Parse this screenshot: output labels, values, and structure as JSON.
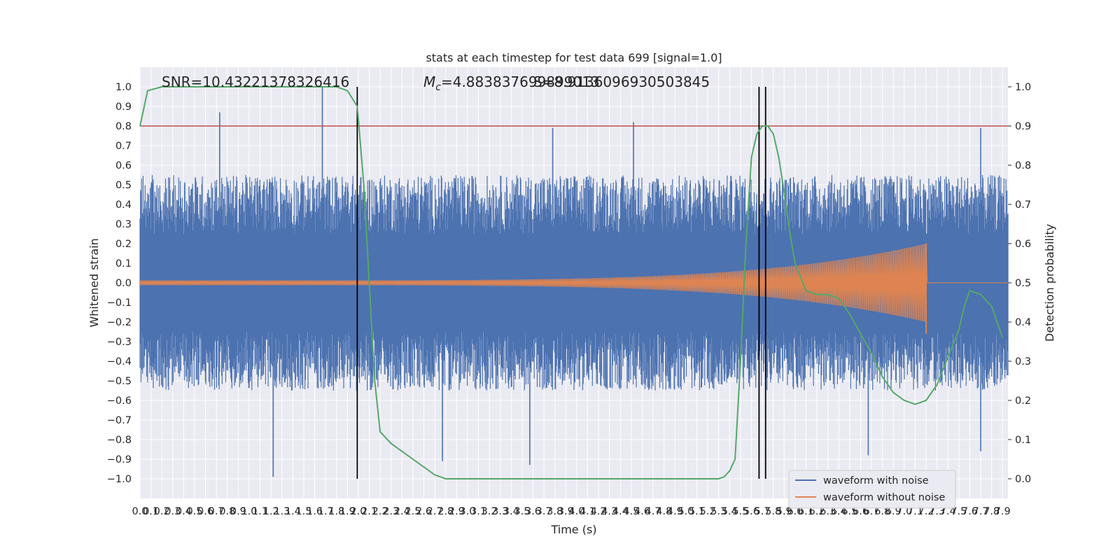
{
  "chart_data": {
    "type": "line",
    "title": "stats at each timestep for test data 699 [signal=1.0]",
    "xlabel": "Time (s)",
    "ylabel": "Whitened strain",
    "y2label": "Detection probability",
    "xlim": [
      0.0,
      7.95
    ],
    "ylim": [
      -1.1,
      1.1
    ],
    "y2lim": [
      -0.05,
      1.05
    ],
    "grid": true,
    "legend_position": "bottom-right",
    "x_tick_labels": [
      "0.0",
      "0.1",
      "0.2",
      "0.3",
      "0.4",
      "0.5",
      "0.6",
      "0.7",
      "0.8",
      "0.9",
      "1.0",
      "1.1",
      "1.2",
      "1.3",
      "1.4",
      "1.5",
      "1.6",
      "1.7",
      "1.8",
      "1.9",
      "2.0",
      "2.1",
      "2.2",
      "2.3",
      "2.4",
      "2.5",
      "2.6",
      "2.7",
      "2.8",
      "2.9",
      "3.0",
      "3.1",
      "3.2",
      "3.3",
      "3.4",
      "3.5",
      "3.6",
      "3.7",
      "3.8",
      "3.9",
      "4.0",
      "4.1",
      "4.2",
      "4.3",
      "4.4",
      "4.5",
      "4.6",
      "4.7",
      "4.8",
      "4.9",
      "5.0",
      "5.1",
      "5.2",
      "5.3",
      "5.4",
      "5.5",
      "5.6",
      "5.7",
      "5.8",
      "5.9",
      "6.0",
      "6.1",
      "6.2",
      "6.3",
      "6.4",
      "6.5",
      "6.6",
      "6.7",
      "6.8",
      "6.9",
      "7.0",
      "7.1",
      "7.2",
      "7.3",
      "7.4",
      "7.5",
      "7.6",
      "7.7",
      "7.8",
      "7.9"
    ],
    "y_tick_labels": [
      "1.0",
      "0.9",
      "0.8",
      "0.7",
      "0.6",
      "0.5",
      "0.4",
      "0.3",
      "0.2",
      "0.1",
      "0.0",
      "−0.1",
      "−0.2",
      "−0.3",
      "−0.4",
      "−0.5",
      "−0.6",
      "−0.7",
      "−0.8",
      "−0.9",
      "−1.0"
    ],
    "y2_tick_labels": [
      "1.0",
      "0.9",
      "0.8",
      "0.7",
      "0.6",
      "0.5",
      "0.4",
      "0.3",
      "0.2",
      "0.1",
      "0.0"
    ],
    "annotations": {
      "snr": "SNR=10.43221378326416",
      "mc": "M",
      "mc_sub": "c",
      "mc_value": "=4.883837699899013",
      "mc_overlap": "S=8.9136096930503845"
    },
    "threshold_line": {
      "y2": 0.9,
      "color": "#c44e52"
    },
    "vertical_lines": [
      1.99,
      5.67,
      5.73
    ],
    "series": [
      {
        "name": "waveform with noise",
        "color": "#4c72b0",
        "envelope_max": 0.55,
        "spikes": [
          [
            0.73,
            0.87
          ],
          [
            1.67,
            1.0
          ],
          [
            1.22,
            -0.99
          ],
          [
            3.57,
            -0.93
          ],
          [
            3.78,
            0.79
          ],
          [
            4.52,
            0.82
          ],
          [
            7.7,
            0.79
          ],
          [
            7.7,
            -0.86
          ],
          [
            6.67,
            -0.88
          ],
          [
            2.77,
            -0.91
          ]
        ]
      },
      {
        "name": "waveform without noise",
        "color": "#dd8452",
        "chirp_start_amp": 0.012,
        "chirp_end_amp": 0.2,
        "merger_time": 7.2
      },
      {
        "name": "",
        "color": "#55a868",
        "axis": "y2",
        "x": [
          0.0,
          0.07,
          0.2,
          0.5,
          1.0,
          1.5,
          1.8,
          1.9,
          1.99,
          2.05,
          2.1,
          2.15,
          2.2,
          2.3,
          2.4,
          2.5,
          2.6,
          2.7,
          2.8,
          2.9,
          3.0,
          3.5,
          4.0,
          4.5,
          5.0,
          5.2,
          5.3,
          5.35,
          5.4,
          5.45,
          5.5,
          5.55,
          5.6,
          5.65,
          5.7,
          5.75,
          5.8,
          5.85,
          5.9,
          5.95,
          6.0,
          6.1,
          6.2,
          6.3,
          6.4,
          6.5,
          6.6,
          6.7,
          6.8,
          6.9,
          7.0,
          7.1,
          7.2,
          7.3,
          7.4,
          7.5,
          7.55,
          7.6,
          7.7,
          7.8,
          7.9
        ],
        "y": [
          0.9,
          0.99,
          1.0,
          1.0,
          1.0,
          1.0,
          1.0,
          0.99,
          0.95,
          0.75,
          0.5,
          0.25,
          0.12,
          0.09,
          0.07,
          0.05,
          0.03,
          0.01,
          0.0,
          0.0,
          0.0,
          0.0,
          0.0,
          0.0,
          0.0,
          0.0,
          0.0,
          0.005,
          0.02,
          0.05,
          0.3,
          0.6,
          0.82,
          0.88,
          0.9,
          0.9,
          0.88,
          0.82,
          0.73,
          0.63,
          0.55,
          0.48,
          0.47,
          0.47,
          0.46,
          0.42,
          0.37,
          0.32,
          0.26,
          0.22,
          0.2,
          0.19,
          0.2,
          0.24,
          0.31,
          0.38,
          0.44,
          0.48,
          0.47,
          0.44,
          0.36
        ]
      }
    ]
  }
}
